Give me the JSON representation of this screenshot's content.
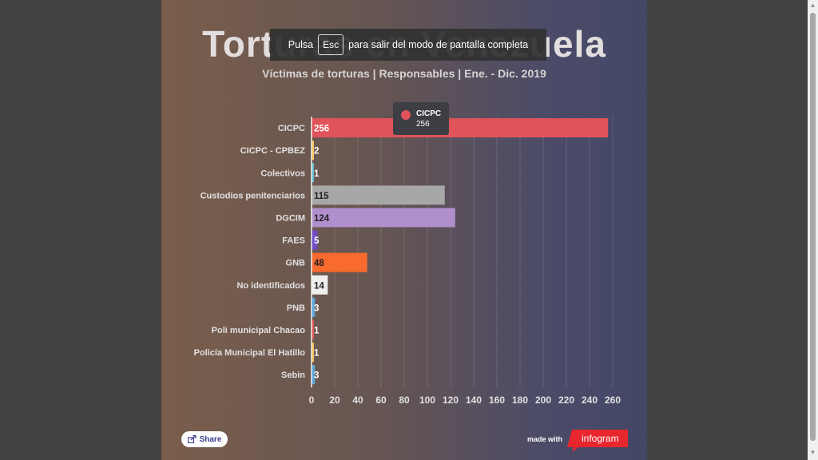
{
  "chart_data": {
    "type": "bar",
    "orientation": "horizontal",
    "title": "Torturas en Venezuela",
    "subtitle": "Víctimas de torturas | Responsables | Ene. - Dic. 2019",
    "categories": [
      "CICPC",
      "CICPC - CPBEZ",
      "Colectivos",
      "Custodios penitenciarios",
      "DGCIM",
      "FAES",
      "GNB",
      "No identificados",
      "PNB",
      "Poli municipal Chacao",
      "Policía Municipal El Hatillo",
      "Sebin"
    ],
    "values": [
      256,
      2,
      1,
      115,
      124,
      5,
      48,
      14,
      3,
      1,
      1,
      3
    ],
    "colors": [
      "#e1535a",
      "#f2c45a",
      "#63c0d3",
      "#a7a7a7",
      "#b08fcc",
      "#6f4bc8",
      "#f96a2f",
      "#efefef",
      "#5ba4d8",
      "#e1535a",
      "#f2c45a",
      "#5ba4d8"
    ],
    "value_label_colors": [
      "#ffffff",
      "#ffffff",
      "#ffffff",
      "#222222",
      "#222222",
      "#ffffff",
      "#222222",
      "#222222",
      "#ffffff",
      "#ffffff",
      "#ffffff",
      "#ffffff"
    ],
    "xticks": [
      0,
      20,
      40,
      60,
      80,
      100,
      120,
      140,
      160,
      180,
      200,
      220,
      240,
      260
    ],
    "xlim": [
      0,
      260
    ],
    "grid": true,
    "legend": "none"
  },
  "tooltip": {
    "name": "CICPC",
    "value": "256",
    "color": "#e1535a"
  },
  "footer": {
    "share_label": "Share",
    "made_with": "made with",
    "brand": "infogram",
    "brand_color": "#e8262d"
  },
  "fullscreen_banner": {
    "prefix": "Pulsa",
    "key": "Esc",
    "suffix": "para salir del modo de pantalla completa"
  },
  "scrollbar": {
    "up": "▲",
    "down": "▼"
  }
}
